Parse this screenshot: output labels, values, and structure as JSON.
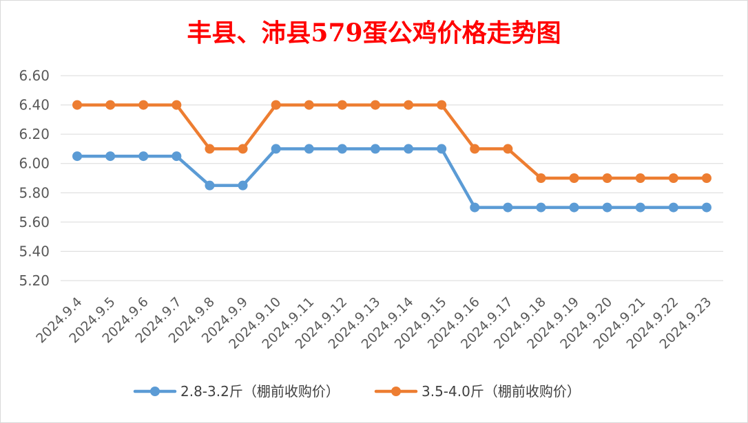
{
  "chart_data": {
    "type": "line",
    "title": "丰县、沛县579蛋公鸡价格走势图",
    "xlabel": "",
    "ylabel": "",
    "ylim": [
      5.2,
      6.6
    ],
    "yticks": [
      "5.20",
      "5.40",
      "5.60",
      "5.80",
      "6.00",
      "6.20",
      "6.40",
      "6.60"
    ],
    "grid": true,
    "legend_position": "bottom",
    "categories": [
      "2024.9.4",
      "2024.9.5",
      "2024.9.6",
      "2024.9.7",
      "2024.9.8",
      "2024.9.9",
      "2024.9.10",
      "2024.9.11",
      "2024.9.12",
      "2024.9.13",
      "2024.9.14",
      "2024.9.15",
      "2024.9.16",
      "2024.9.17",
      "2024.9.18",
      "2024.9.19",
      "2024.9.20",
      "2024.9.21",
      "2024.9.22",
      "2024.9.23"
    ],
    "series": [
      {
        "name": "2.8-3.2斤（棚前收购价）",
        "color": "#5b9bd5",
        "values": [
          6.05,
          6.05,
          6.05,
          6.05,
          5.85,
          5.85,
          6.1,
          6.1,
          6.1,
          6.1,
          6.1,
          6.1,
          5.7,
          5.7,
          5.7,
          5.7,
          5.7,
          5.7,
          5.7,
          5.7
        ]
      },
      {
        "name": "3.5-4.0斤（棚前收购价）",
        "color": "#ed7d31",
        "values": [
          6.4,
          6.4,
          6.4,
          6.4,
          6.1,
          6.1,
          6.4,
          6.4,
          6.4,
          6.4,
          6.4,
          6.4,
          6.1,
          6.1,
          5.9,
          5.9,
          5.9,
          5.9,
          5.9,
          5.9
        ]
      }
    ]
  },
  "colors": {
    "title": "#ff0000",
    "grid": "#d9d9d9",
    "tick_text": "#595959"
  }
}
